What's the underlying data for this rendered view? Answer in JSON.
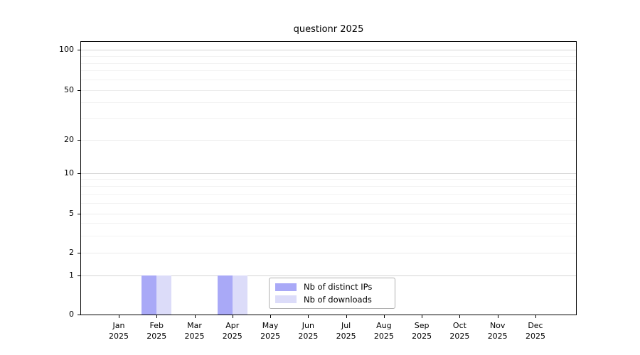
{
  "chart_data": {
    "type": "bar",
    "title": "questionr 2025",
    "categories": [
      "Jan",
      "Feb",
      "Mar",
      "Apr",
      "May",
      "Jun",
      "Jul",
      "Aug",
      "Sep",
      "Oct",
      "Nov",
      "Dec"
    ],
    "category_year": "2025",
    "series": [
      {
        "name": "Nb of distinct IPs",
        "color": "#a9a9f7",
        "values": [
          0,
          1,
          0,
          1,
          0,
          0,
          0,
          0,
          0,
          0,
          0,
          0
        ]
      },
      {
        "name": "Nb of downloads",
        "color": "#dcdcf9",
        "values": [
          0,
          1,
          0,
          1,
          0,
          0,
          0,
          0,
          0,
          0,
          0,
          0
        ]
      }
    ],
    "xlabel": "",
    "ylabel": "",
    "y_ticks": [
      0,
      1,
      2,
      5,
      10,
      20,
      50,
      100
    ],
    "y_minor_ticks": [
      3,
      4,
      6,
      7,
      8,
      9,
      30,
      40,
      60,
      70,
      80,
      90
    ],
    "ylim": [
      0,
      100
    ],
    "y_scale": "log-like above 1 with linear 0-1 segment",
    "grid": "horizontal major+minor",
    "legend_position": "lower center",
    "scale_anchors": [
      [
        0,
        0
      ],
      [
        1,
        0.1444
      ],
      [
        2,
        0.2263
      ],
      [
        5,
        0.3706
      ],
      [
        10,
        0.5189
      ],
      [
        20,
        0.6419
      ],
      [
        50,
        0.8239
      ],
      [
        100,
        0.9701
      ]
    ],
    "colors": {
      "spine": "#000000",
      "grid_minor": "#f2f2f2",
      "grid_major": "#ececec",
      "grid_decade": "#d5d5d5",
      "legend_border": "#b0b0b0",
      "background": "#ffffff"
    }
  }
}
